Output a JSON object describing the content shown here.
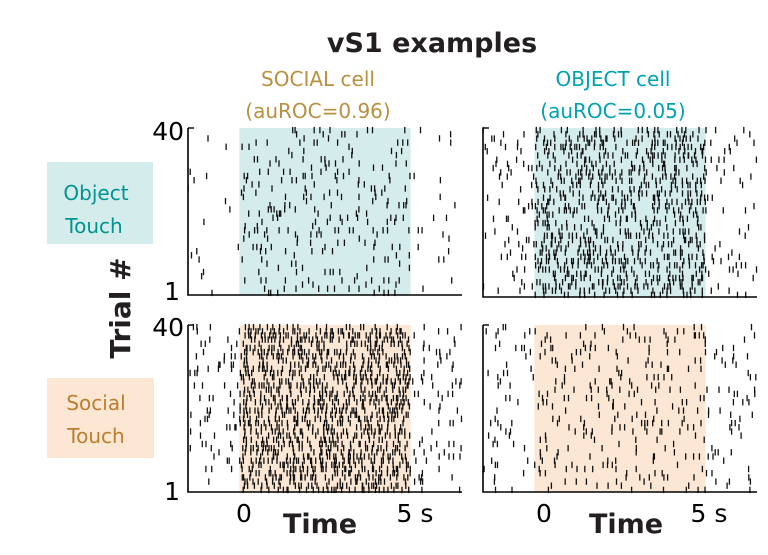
{
  "title": "vS1 examples",
  "colors": {
    "social": "#b8913f",
    "object": "#00a3b0",
    "object_fill": "#d4ecec",
    "social_fill": "#fbe7d3",
    "object_label_text": "#00948f",
    "social_label_text": "#bc7d2f",
    "spike": "#111111"
  },
  "cells": [
    {
      "name": "SOCIAL cell",
      "auroc": "(auROC=0.96)",
      "color": "#b8913f"
    },
    {
      "name": "OBJECT cell",
      "auroc": "(auROC=0.05)",
      "color": "#00a3b0"
    }
  ],
  "rows": [
    {
      "line1": "Object",
      "line2": "Touch"
    },
    {
      "line1": "Social",
      "line2": "Touch"
    }
  ],
  "ylabel": "Trial #",
  "xlabel": "Time",
  "y_ticks": [
    "40",
    "1"
  ],
  "x_tick_start": "0",
  "x_tick_end": "5 s",
  "chart_data": {
    "type": "raster",
    "title": "vS1 examples",
    "xlabel": "Time",
    "ylabel": "Trial #",
    "xlim": [
      -1.5,
      6.5
    ],
    "ylim": [
      1,
      40
    ],
    "touch_window": [
      0,
      5
    ],
    "panels": [
      {
        "cell": "SOCIAL cell",
        "condition": "Object Touch",
        "density_in": 0.12,
        "density_out": 0.03
      },
      {
        "cell": "OBJECT cell",
        "condition": "Object Touch",
        "density_in": 0.4,
        "density_out": 0.1
      },
      {
        "cell": "SOCIAL cell",
        "condition": "Social Touch",
        "density_in": 0.55,
        "density_out": 0.12
      },
      {
        "cell": "OBJECT cell",
        "condition": "Social Touch",
        "density_in": 0.12,
        "density_out": 0.08
      }
    ]
  }
}
